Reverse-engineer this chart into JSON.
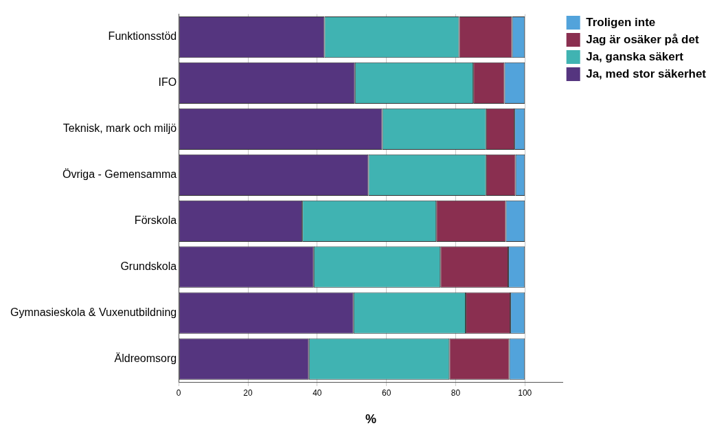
{
  "chart_data": {
    "type": "bar",
    "orientation": "horizontal",
    "stacked": true,
    "xlabel": "%",
    "categories": [
      "Funktionsstöd",
      "IFO",
      "Teknisk, mark och miljö",
      "Övriga - Gemensamma",
      "Förskola",
      "Grundskola",
      "Gymnasieskola & Vuxenutbildning",
      "Äldreomsorg"
    ],
    "series": [
      {
        "name": "Ja, med stor säkerhet",
        "color": "#55357f",
        "values": [
          42.1,
          50.9,
          58.8,
          54.8,
          35.7,
          39.0,
          50.5,
          37.6
        ]
      },
      {
        "name": "Ja, ganska säkert",
        "color": "#40b3b2",
        "values": [
          38.9,
          34.2,
          30.0,
          34.0,
          38.7,
          36.6,
          32.4,
          40.6
        ]
      },
      {
        "name": "Jag är osäker på det",
        "color": "#8a2f50",
        "values": [
          15.3,
          9.0,
          8.2,
          8.5,
          20.1,
          19.6,
          12.9,
          17.3
        ]
      },
      {
        "name": "Troligen inte",
        "color": "#52a3db",
        "values": [
          3.7,
          5.9,
          3.0,
          2.7,
          5.5,
          4.8,
          4.2,
          4.5
        ]
      }
    ],
    "xlim": [
      0,
      111
    ],
    "xticks": [
      0,
      20,
      40,
      60,
      80,
      100
    ],
    "grid": "x",
    "legend": "top right"
  }
}
